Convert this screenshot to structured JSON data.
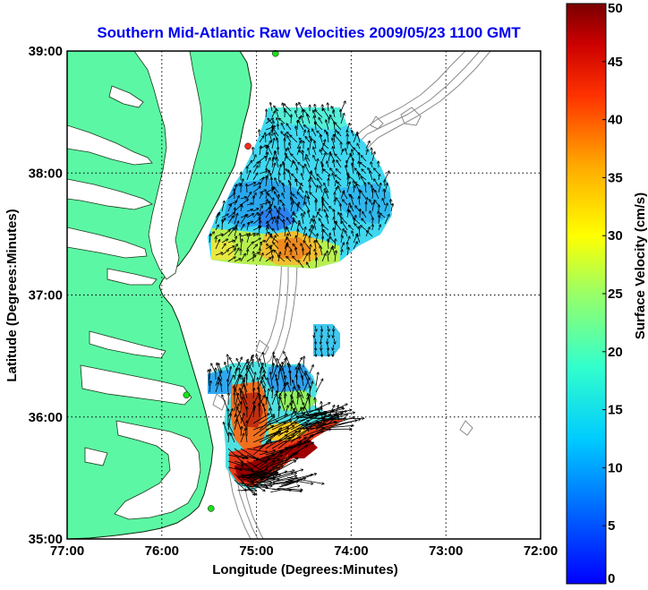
{
  "title": "Southern Mid-Atlantic Raw Velocities 2009/05/23 1100 GMT",
  "axes": {
    "xlabel": "Longitude (Degrees:Minutes)",
    "ylabel": "Latitude (Degrees:Minutes)",
    "x_ticks": [
      {
        "value": -77,
        "label": "77:00"
      },
      {
        "value": -76,
        "label": "76:00"
      },
      {
        "value": -75,
        "label": "75:00"
      },
      {
        "value": -74,
        "label": "74:00"
      },
      {
        "value": -73,
        "label": "73:00"
      },
      {
        "value": -72,
        "label": "72:00"
      }
    ],
    "y_ticks": [
      {
        "value": 39,
        "label": "39:00"
      },
      {
        "value": 38,
        "label": "38:00"
      },
      {
        "value": 37,
        "label": "37:00"
      },
      {
        "value": 36,
        "label": "36:00"
      },
      {
        "value": 35,
        "label": "35:00"
      }
    ],
    "xlim": [
      -77,
      -72
    ],
    "ylim": [
      35,
      39
    ],
    "grid": "dotted"
  },
  "colorbar": {
    "label": "Surface Velocity (cm/s)",
    "range": [
      0,
      50
    ],
    "ticks": [
      "0",
      "5",
      "10",
      "15",
      "20",
      "25",
      "30",
      "35",
      "40",
      "45",
      "50"
    ]
  },
  "colors": {
    "land": "#5cf7a5",
    "water": "#ffffff",
    "title": "#0000ee",
    "bathymetry": "#8a8a8a",
    "station_green": "#19e019",
    "station_red": "#ff2a1a"
  },
  "stations": [
    {
      "lon": -74.8,
      "lat": 38.98,
      "status": "green"
    },
    {
      "lon": -75.09,
      "lat": 38.22,
      "status": "red"
    },
    {
      "lon": -75.74,
      "lat": 36.18,
      "status": "green"
    },
    {
      "lon": -75.48,
      "lat": 35.25,
      "status": "green"
    }
  ]
}
